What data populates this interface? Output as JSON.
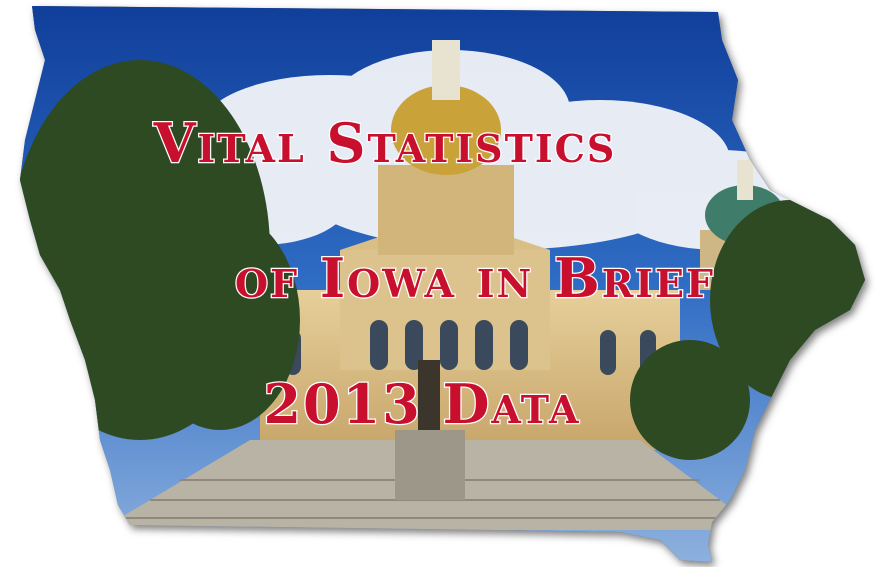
{
  "title": {
    "line1": "Vital Statistics",
    "line2": "of Iowa in Brief",
    "line3": "2013 Data"
  }
}
